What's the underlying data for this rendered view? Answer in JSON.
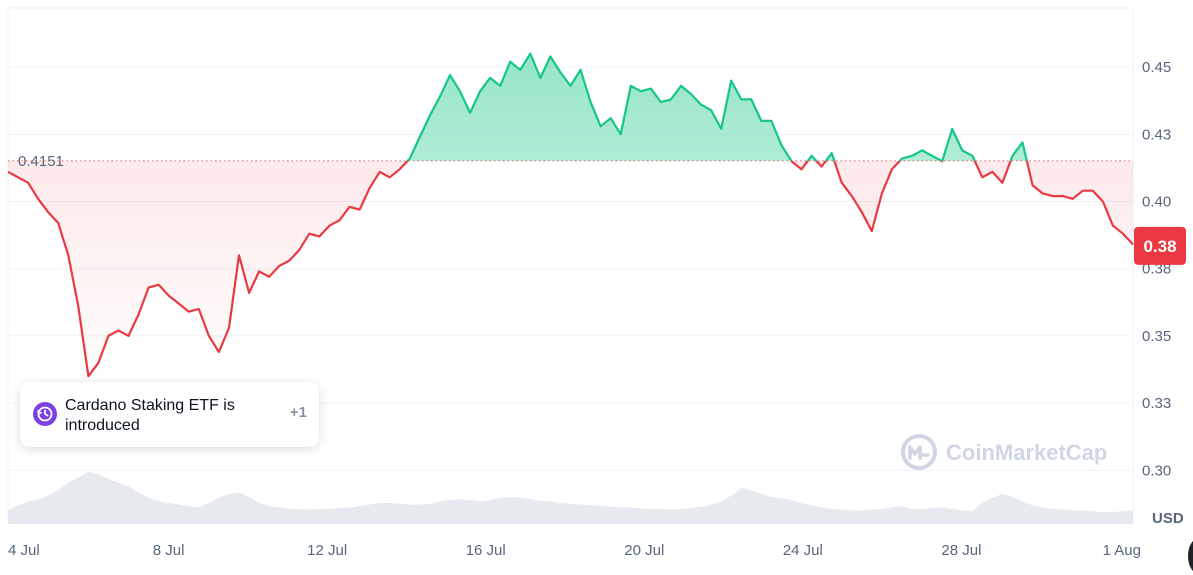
{
  "chart_data": {
    "type": "area",
    "y_unit": "USD",
    "reference_value": 0.4151,
    "reference_label": "0.4151",
    "current_value": 0.3835,
    "current_label": "0.38",
    "ylim": [
      0.28,
      0.472
    ],
    "y_ticks": [
      {
        "value": 0.3,
        "label": "0.30"
      },
      {
        "value": 0.325,
        "label": "0.33"
      },
      {
        "value": 0.35,
        "label": "0.35"
      },
      {
        "value": 0.375,
        "label": "0.38"
      },
      {
        "value": 0.4,
        "label": "0.40"
      },
      {
        "value": 0.425,
        "label": "0.43"
      },
      {
        "value": 0.45,
        "label": "0.45"
      }
    ],
    "x_ticks": [
      "4 Jul",
      "8 Jul",
      "12 Jul",
      "16 Jul",
      "20 Jul",
      "24 Jul",
      "28 Jul",
      "1 Aug"
    ],
    "grid": true,
    "colors": {
      "up": "#16c784",
      "down": "#ea3943",
      "grid": "#eff2f5",
      "axis_text": "#58667e",
      "volume": "#e6e9ee"
    },
    "series": [
      {
        "x_start": "4 Jul",
        "x_end": "1 Aug",
        "values": [
          0.411,
          0.409,
          0.407,
          0.401,
          0.396,
          0.392,
          0.38,
          0.361,
          0.335,
          0.34,
          0.35,
          0.352,
          0.35,
          0.358,
          0.368,
          0.369,
          0.365,
          0.362,
          0.359,
          0.36,
          0.35,
          0.344,
          0.353,
          0.38,
          0.366,
          0.374,
          0.372,
          0.376,
          0.378,
          0.382,
          0.388,
          0.387,
          0.391,
          0.393,
          0.398,
          0.397,
          0.405,
          0.411,
          0.409,
          0.412,
          0.416,
          0.424,
          0.432,
          0.439,
          0.447,
          0.441,
          0.433,
          0.441,
          0.446,
          0.443,
          0.452,
          0.449,
          0.455,
          0.446,
          0.454,
          0.448,
          0.443,
          0.449,
          0.437,
          0.428,
          0.431,
          0.425,
          0.443,
          0.441,
          0.442,
          0.437,
          0.438,
          0.443,
          0.44,
          0.436,
          0.434,
          0.427,
          0.445,
          0.438,
          0.438,
          0.43,
          0.43,
          0.421,
          0.415,
          0.412,
          0.417,
          0.413,
          0.418,
          0.407,
          0.402,
          0.396,
          0.389,
          0.403,
          0.412,
          0.416,
          0.417,
          0.419,
          0.417,
          0.415,
          0.427,
          0.419,
          0.417,
          0.409,
          0.411,
          0.407,
          0.417,
          0.422,
          0.406,
          0.403,
          0.402,
          0.402,
          0.401,
          0.404,
          0.404,
          0.4,
          0.391,
          0.388,
          0.384
        ]
      }
    ],
    "volume": [
      0.18,
      0.25,
      0.3,
      0.32,
      0.38,
      0.45,
      0.55,
      0.62,
      0.7,
      0.66,
      0.6,
      0.55,
      0.5,
      0.42,
      0.35,
      0.3,
      0.28,
      0.26,
      0.24,
      0.22,
      0.28,
      0.35,
      0.4,
      0.42,
      0.36,
      0.28,
      0.24,
      0.22,
      0.2,
      0.2,
      0.19,
      0.2,
      0.2,
      0.21,
      0.22,
      0.24,
      0.26,
      0.28,
      0.28,
      0.27,
      0.26,
      0.26,
      0.27,
      0.3,
      0.32,
      0.33,
      0.32,
      0.3,
      0.32,
      0.35,
      0.36,
      0.35,
      0.33,
      0.31,
      0.3,
      0.28,
      0.27,
      0.26,
      0.25,
      0.24,
      0.23,
      0.22,
      0.22,
      0.21,
      0.2,
      0.2,
      0.19,
      0.2,
      0.21,
      0.23,
      0.25,
      0.3,
      0.38,
      0.48,
      0.45,
      0.4,
      0.36,
      0.34,
      0.32,
      0.28,
      0.25,
      0.22,
      0.2,
      0.19,
      0.18,
      0.18,
      0.19,
      0.2,
      0.22,
      0.24,
      0.2,
      0.2,
      0.21,
      0.22,
      0.2,
      0.18,
      0.17,
      0.28,
      0.35,
      0.4,
      0.36,
      0.3,
      0.25,
      0.22,
      0.2,
      0.19,
      0.18,
      0.18,
      0.17,
      0.16,
      0.16,
      0.17,
      0.18
    ]
  },
  "event": {
    "text": "Cardano Staking ETF is introduced",
    "count": "+1",
    "icon": "history-clock-icon"
  },
  "watermark": {
    "text": "CoinMarketCap"
  },
  "axis_unit_label": "USD"
}
